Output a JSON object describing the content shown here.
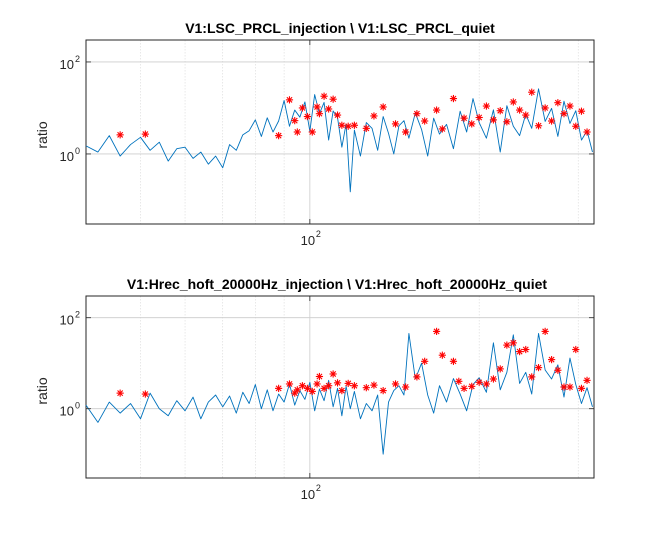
{
  "chart_data": [
    {
      "type": "line",
      "title": "V1:LSC_PRCL_injection \\ V1:LSC_PRCL_quiet",
      "xlabel": "",
      "ylabel": "ratio",
      "xscale": "log",
      "yscale": "log",
      "xlim": [
        40,
        320
      ],
      "ylim": [
        0.03,
        300
      ],
      "xticks": [
        {
          "base": "10",
          "exp": "2",
          "value": 100
        }
      ],
      "yticks": [
        {
          "base": "10",
          "exp": "0",
          "value": 1
        },
        {
          "base": "10",
          "exp": "2",
          "value": 100
        }
      ],
      "grid": true,
      "series": [
        {
          "style": "line",
          "color": "#0072BD",
          "x": [
            40,
            42,
            44,
            46,
            48,
            50,
            52,
            54,
            56,
            58,
            60,
            62,
            64,
            66,
            68,
            70,
            72,
            74,
            76,
            78,
            80,
            82,
            84,
            86,
            88,
            90,
            92,
            94,
            96,
            98,
            100,
            102,
            104,
            106,
            108,
            110,
            112,
            114,
            116,
            118,
            120,
            123,
            126,
            129,
            132,
            135,
            138,
            141,
            144,
            147,
            150,
            154,
            158,
            162,
            166,
            170,
            175,
            180,
            185,
            190,
            195,
            200,
            206,
            212,
            218,
            224,
            230,
            236,
            242,
            248,
            255,
            262,
            269,
            276,
            283,
            290,
            297,
            304,
            311,
            318
          ],
          "values": [
            1.5,
            1.1,
            2.5,
            0.9,
            1.6,
            2.3,
            1.2,
            1.8,
            0.7,
            1.3,
            1.4,
            0.8,
            1.1,
            0.6,
            0.9,
            0.5,
            1.6,
            1.2,
            2.6,
            3.2,
            5.5,
            2.4,
            6.1,
            3.0,
            5.2,
            14.5,
            4.0,
            9.0,
            6.3,
            13.5,
            3.1,
            19.5,
            7.5,
            13.2,
            2.0,
            8.6,
            6.2,
            1.4,
            4.5,
            0.15,
            3.3,
            0.9,
            4.8,
            3.6,
            1.2,
            6.5,
            2.8,
            1.0,
            4.1,
            5.3,
            2.2,
            7.8,
            3.4,
            0.9,
            6.0,
            2.7,
            4.4,
            1.3,
            8.5,
            3.0,
            16.0,
            4.8,
            2.2,
            9.1,
            1.1,
            11.2,
            4.0,
            2.5,
            7.3,
            3.6,
            26.0,
            5.1,
            9.8,
            2.4,
            14.0,
            4.6,
            8.7,
            2.0,
            3.2,
            1.1
          ]
        },
        {
          "style": "markers",
          "color": "#ff0000",
          "marker": "asterisk",
          "x": [
            46,
            51,
            88,
            92,
            94,
            95,
            97,
            99,
            101,
            103,
            104,
            106,
            108,
            110,
            112,
            114,
            117,
            120,
            126,
            130,
            135,
            142,
            148,
            155,
            160,
            168,
            172,
            180,
            188,
            194,
            200,
            206,
            212,
            218,
            224,
            230,
            236,
            242,
            248,
            255,
            262,
            269,
            276,
            283,
            290,
            297,
            304,
            311
          ],
          "values": [
            2.6,
            2.7,
            2.5,
            15.0,
            5.3,
            3.0,
            10.0,
            6.5,
            3.0,
            10.5,
            7.5,
            18.0,
            9.5,
            15.5,
            7.0,
            4.2,
            4.0,
            4.2,
            3.6,
            6.7,
            10.5,
            4.5,
            3.0,
            7.5,
            5.2,
            9.0,
            3.5,
            16.0,
            6.0,
            4.5,
            6.2,
            11.0,
            5.5,
            8.7,
            5.0,
            13.5,
            9.0,
            7.0,
            22.0,
            4.1,
            10.0,
            5.2,
            13.0,
            7.5,
            11.0,
            4.0,
            8.5,
            3.0
          ]
        }
      ]
    },
    {
      "type": "line",
      "title": "V1:Hrec_hoft_20000Hz_injection \\ V1:Hrec_hoft_20000Hz_quiet",
      "xlabel": "",
      "ylabel": "ratio",
      "xscale": "log",
      "yscale": "log",
      "xlim": [
        40,
        320
      ],
      "ylim": [
        0.03,
        300
      ],
      "xticks": [
        {
          "base": "10",
          "exp": "2",
          "value": 100
        }
      ],
      "yticks": [
        {
          "base": "10",
          "exp": "0",
          "value": 1
        },
        {
          "base": "10",
          "exp": "2",
          "value": 100
        }
      ],
      "grid": true,
      "series": [
        {
          "style": "line",
          "color": "#0072BD",
          "x": [
            40,
            42,
            44,
            46,
            48,
            50,
            52,
            54,
            56,
            58,
            60,
            62,
            64,
            66,
            68,
            70,
            72,
            74,
            76,
            78,
            80,
            82,
            84,
            86,
            88,
            90,
            92,
            94,
            96,
            98,
            100,
            102,
            104,
            106,
            108,
            110,
            112,
            114,
            116,
            118,
            120,
            123,
            126,
            129,
            132,
            135,
            138,
            141,
            144,
            147,
            150,
            154,
            158,
            162,
            166,
            170,
            175,
            180,
            185,
            190,
            195,
            200,
            206,
            212,
            218,
            224,
            230,
            236,
            242,
            248,
            255,
            262,
            269,
            276,
            283,
            290,
            297,
            304,
            311,
            318
          ],
          "values": [
            1.2,
            0.5,
            1.4,
            0.8,
            1.3,
            0.6,
            2.2,
            1.0,
            0.7,
            1.5,
            0.9,
            1.8,
            0.6,
            1.4,
            2.0,
            1.1,
            1.9,
            0.8,
            2.3,
            1.3,
            3.4,
            1.0,
            2.6,
            0.9,
            2.1,
            1.4,
            3.5,
            1.2,
            2.5,
            1.6,
            3.8,
            0.9,
            2.7,
            1.5,
            4.2,
            1.1,
            2.8,
            0.7,
            3.1,
            1.0,
            2.4,
            0.6,
            1.3,
            0.9,
            2.0,
            0.1,
            1.4,
            2.5,
            3.2,
            2.0,
            45.0,
            4.5,
            10.0,
            2.0,
            0.8,
            3.2,
            1.4,
            4.6,
            2.1,
            0.9,
            3.4,
            4.8,
            2.3,
            28.0,
            2.6,
            6.3,
            42.0,
            3.6,
            6.3,
            2.1,
            45.0,
            7.1,
            4.5,
            9.2,
            1.8,
            13.0,
            3.4,
            1.3,
            2.9,
            1.1
          ]
        },
        {
          "style": "markers",
          "color": "#ff0000",
          "marker": "asterisk",
          "x": [
            46,
            51,
            88,
            92,
            94,
            95,
            97,
            99,
            101,
            103,
            104,
            106,
            108,
            110,
            112,
            114,
            117,
            120,
            126,
            130,
            135,
            142,
            148,
            155,
            160,
            168,
            172,
            180,
            184,
            188,
            194,
            200,
            206,
            212,
            218,
            224,
            230,
            236,
            242,
            248,
            255,
            262,
            269,
            276,
            283,
            290,
            297,
            304,
            311
          ],
          "values": [
            2.2,
            2.1,
            2.8,
            3.5,
            2.2,
            2.6,
            3.2,
            2.8,
            2.4,
            3.5,
            5.1,
            2.8,
            3.2,
            5.8,
            3.7,
            2.5,
            3.6,
            3.2,
            2.9,
            3.3,
            2.5,
            3.5,
            3.0,
            5.0,
            11.0,
            50.0,
            15.0,
            11.0,
            4.0,
            2.8,
            3.1,
            3.8,
            3.5,
            4.5,
            7.5,
            25.0,
            28.0,
            18.0,
            20.0,
            5.0,
            8.0,
            50.0,
            12.0,
            7.0,
            3.0,
            3.0,
            20.0,
            2.8,
            4.2
          ]
        }
      ]
    }
  ]
}
